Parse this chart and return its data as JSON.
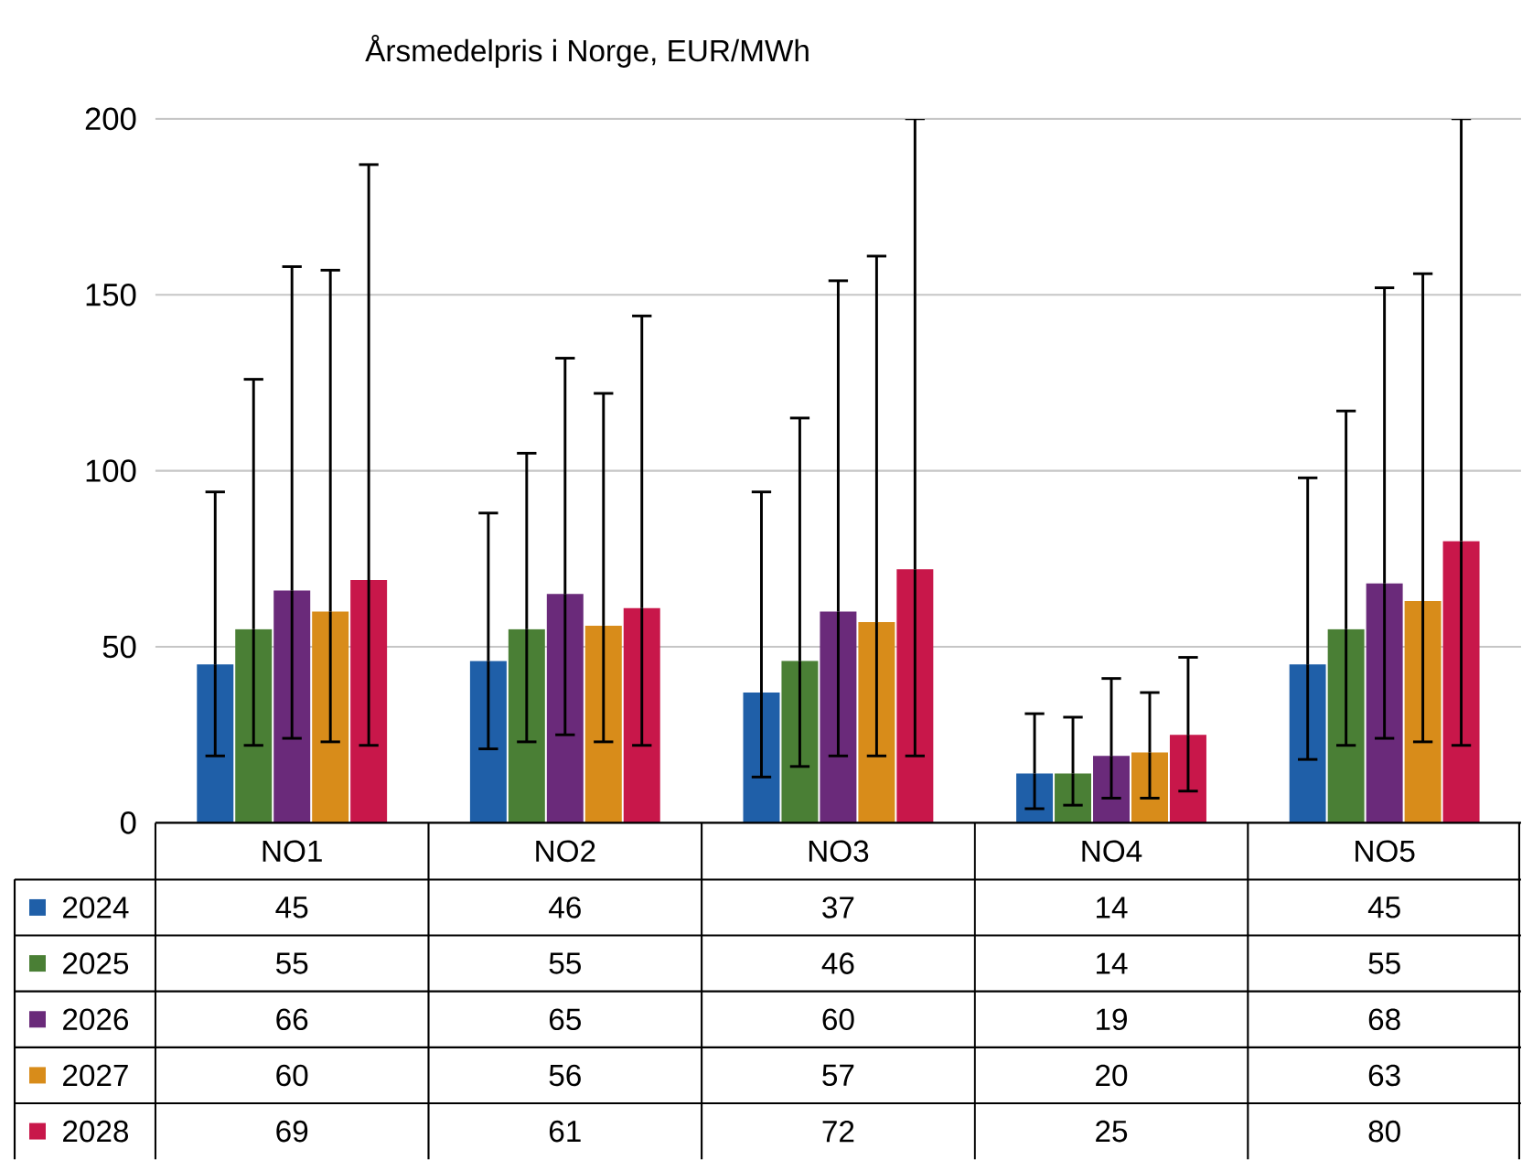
{
  "chart_data": {
    "type": "bar",
    "title": "Årsmedelpris i Norge, EUR/MWh",
    "categories": [
      "NO1",
      "NO2",
      "NO3",
      "NO4",
      "NO5"
    ],
    "series": [
      {
        "name": "2024",
        "color": "#1f5fa8",
        "values": [
          45,
          46,
          37,
          14,
          45
        ],
        "errors": [
          [
            19,
            94
          ],
          [
            21,
            88
          ],
          [
            13,
            94
          ],
          [
            4,
            31
          ],
          [
            18,
            98
          ]
        ]
      },
      {
        "name": "2025",
        "color": "#4a7f35",
        "values": [
          55,
          55,
          46,
          14,
          55
        ],
        "errors": [
          [
            22,
            126
          ],
          [
            23,
            105
          ],
          [
            16,
            115
          ],
          [
            5,
            30
          ],
          [
            22,
            117
          ]
        ]
      },
      {
        "name": "2026",
        "color": "#6a2a7a",
        "values": [
          66,
          65,
          60,
          19,
          68
        ],
        "errors": [
          [
            24,
            158
          ],
          [
            25,
            132
          ],
          [
            19,
            154
          ],
          [
            7,
            41
          ],
          [
            24,
            152
          ]
        ]
      },
      {
        "name": "2027",
        "color": "#d88c1a",
        "values": [
          60,
          56,
          57,
          20,
          63
        ],
        "errors": [
          [
            23,
            157
          ],
          [
            23,
            122
          ],
          [
            19,
            161
          ],
          [
            7,
            37
          ],
          [
            23,
            156
          ]
        ]
      },
      {
        "name": "2028",
        "color": "#c8174a",
        "values": [
          69,
          61,
          72,
          25,
          80
        ],
        "errors": [
          [
            22,
            187
          ],
          [
            22,
            144
          ],
          [
            19,
            200
          ],
          [
            9,
            47
          ],
          [
            22,
            200
          ]
        ]
      }
    ],
    "ylim": [
      0,
      200
    ],
    "yticks": [
      0,
      50,
      100,
      150,
      200
    ],
    "grid": "y",
    "legend": "bottom",
    "data_labels": true
  }
}
